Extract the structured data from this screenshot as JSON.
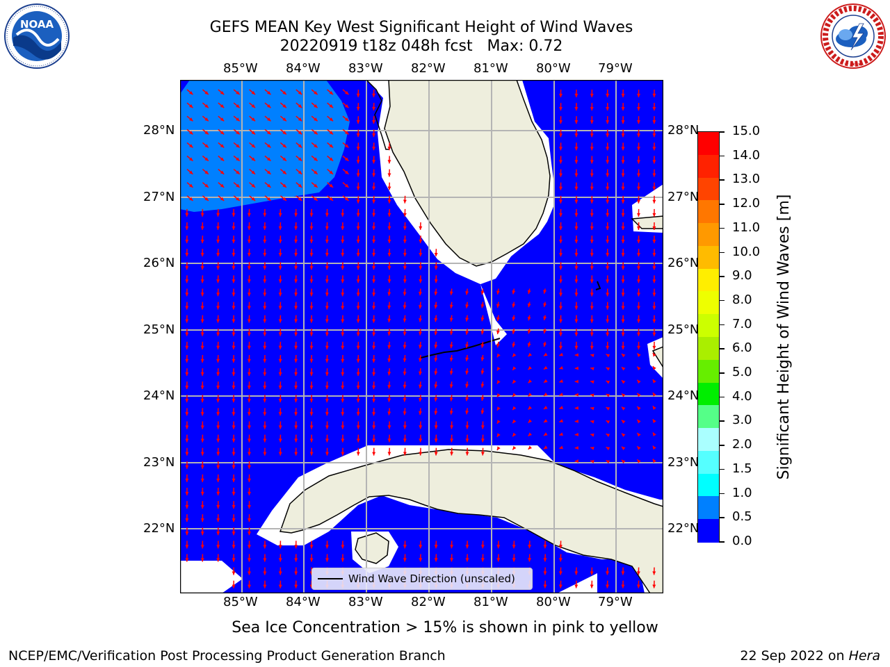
{
  "title": {
    "line1": "GEFS MEAN Key West Significant Height of Wind Waves",
    "line2": "20220919 t18z 048h fcst   Max: 0.72"
  },
  "map": {
    "lon_ticks": [
      "85°W",
      "84°W",
      "83°W",
      "82°W",
      "81°W",
      "80°W",
      "79°W"
    ],
    "lat_ticks": [
      "28°N",
      "27°N",
      "26°N",
      "25°N",
      "24°N",
      "23°N",
      "22°N"
    ],
    "colors": {
      "ocean_low": "#0000ff",
      "ocean_band_2": "#0080ff",
      "land": "#eeeedd",
      "arrows": "#ff0000",
      "grid": "#b4b4b4"
    },
    "legend_label": "Wind Wave Direction (unscaled)"
  },
  "colorbar": {
    "label": "Significant Height of Wind Waves [m]",
    "ticks": [
      "15.0",
      "14.0",
      "13.0",
      "12.0",
      "11.0",
      "10.0",
      "9.0",
      "8.0",
      "7.0",
      "6.0",
      "5.0",
      "4.0",
      "3.0",
      "2.0",
      "1.5",
      "1.0",
      "0.5",
      "0.0"
    ],
    "colors_top_to_bottom": [
      "#ff0000",
      "#ff2200",
      "#ff4400",
      "#ff7700",
      "#ff9900",
      "#ffbb00",
      "#ffee00",
      "#eeff00",
      "#ccff00",
      "#aaee00",
      "#66ee00",
      "#00ee00",
      "#55ff88",
      "#aaffff",
      "#55ffff",
      "#00ffff",
      "#0080ff",
      "#0000ff"
    ]
  },
  "subtitle": "Sea Ice Concentration > 15% is shown in pink to yellow",
  "footer": {
    "left": "NCEP/EMC/Verification Post Processing Product Generation Branch",
    "right_prefix": "22 Sep 2022 on ",
    "right_machine": "Hera"
  },
  "logos": {
    "noaa_text": "NOAA",
    "noaa_ring": "NATIONAL OCEANIC AND ATMOSPHERIC ADMINISTRATION · U.S. DEPARTMENT OF COMMERCE",
    "nws_ring": "NATIONAL WEATHER SERVICE"
  }
}
